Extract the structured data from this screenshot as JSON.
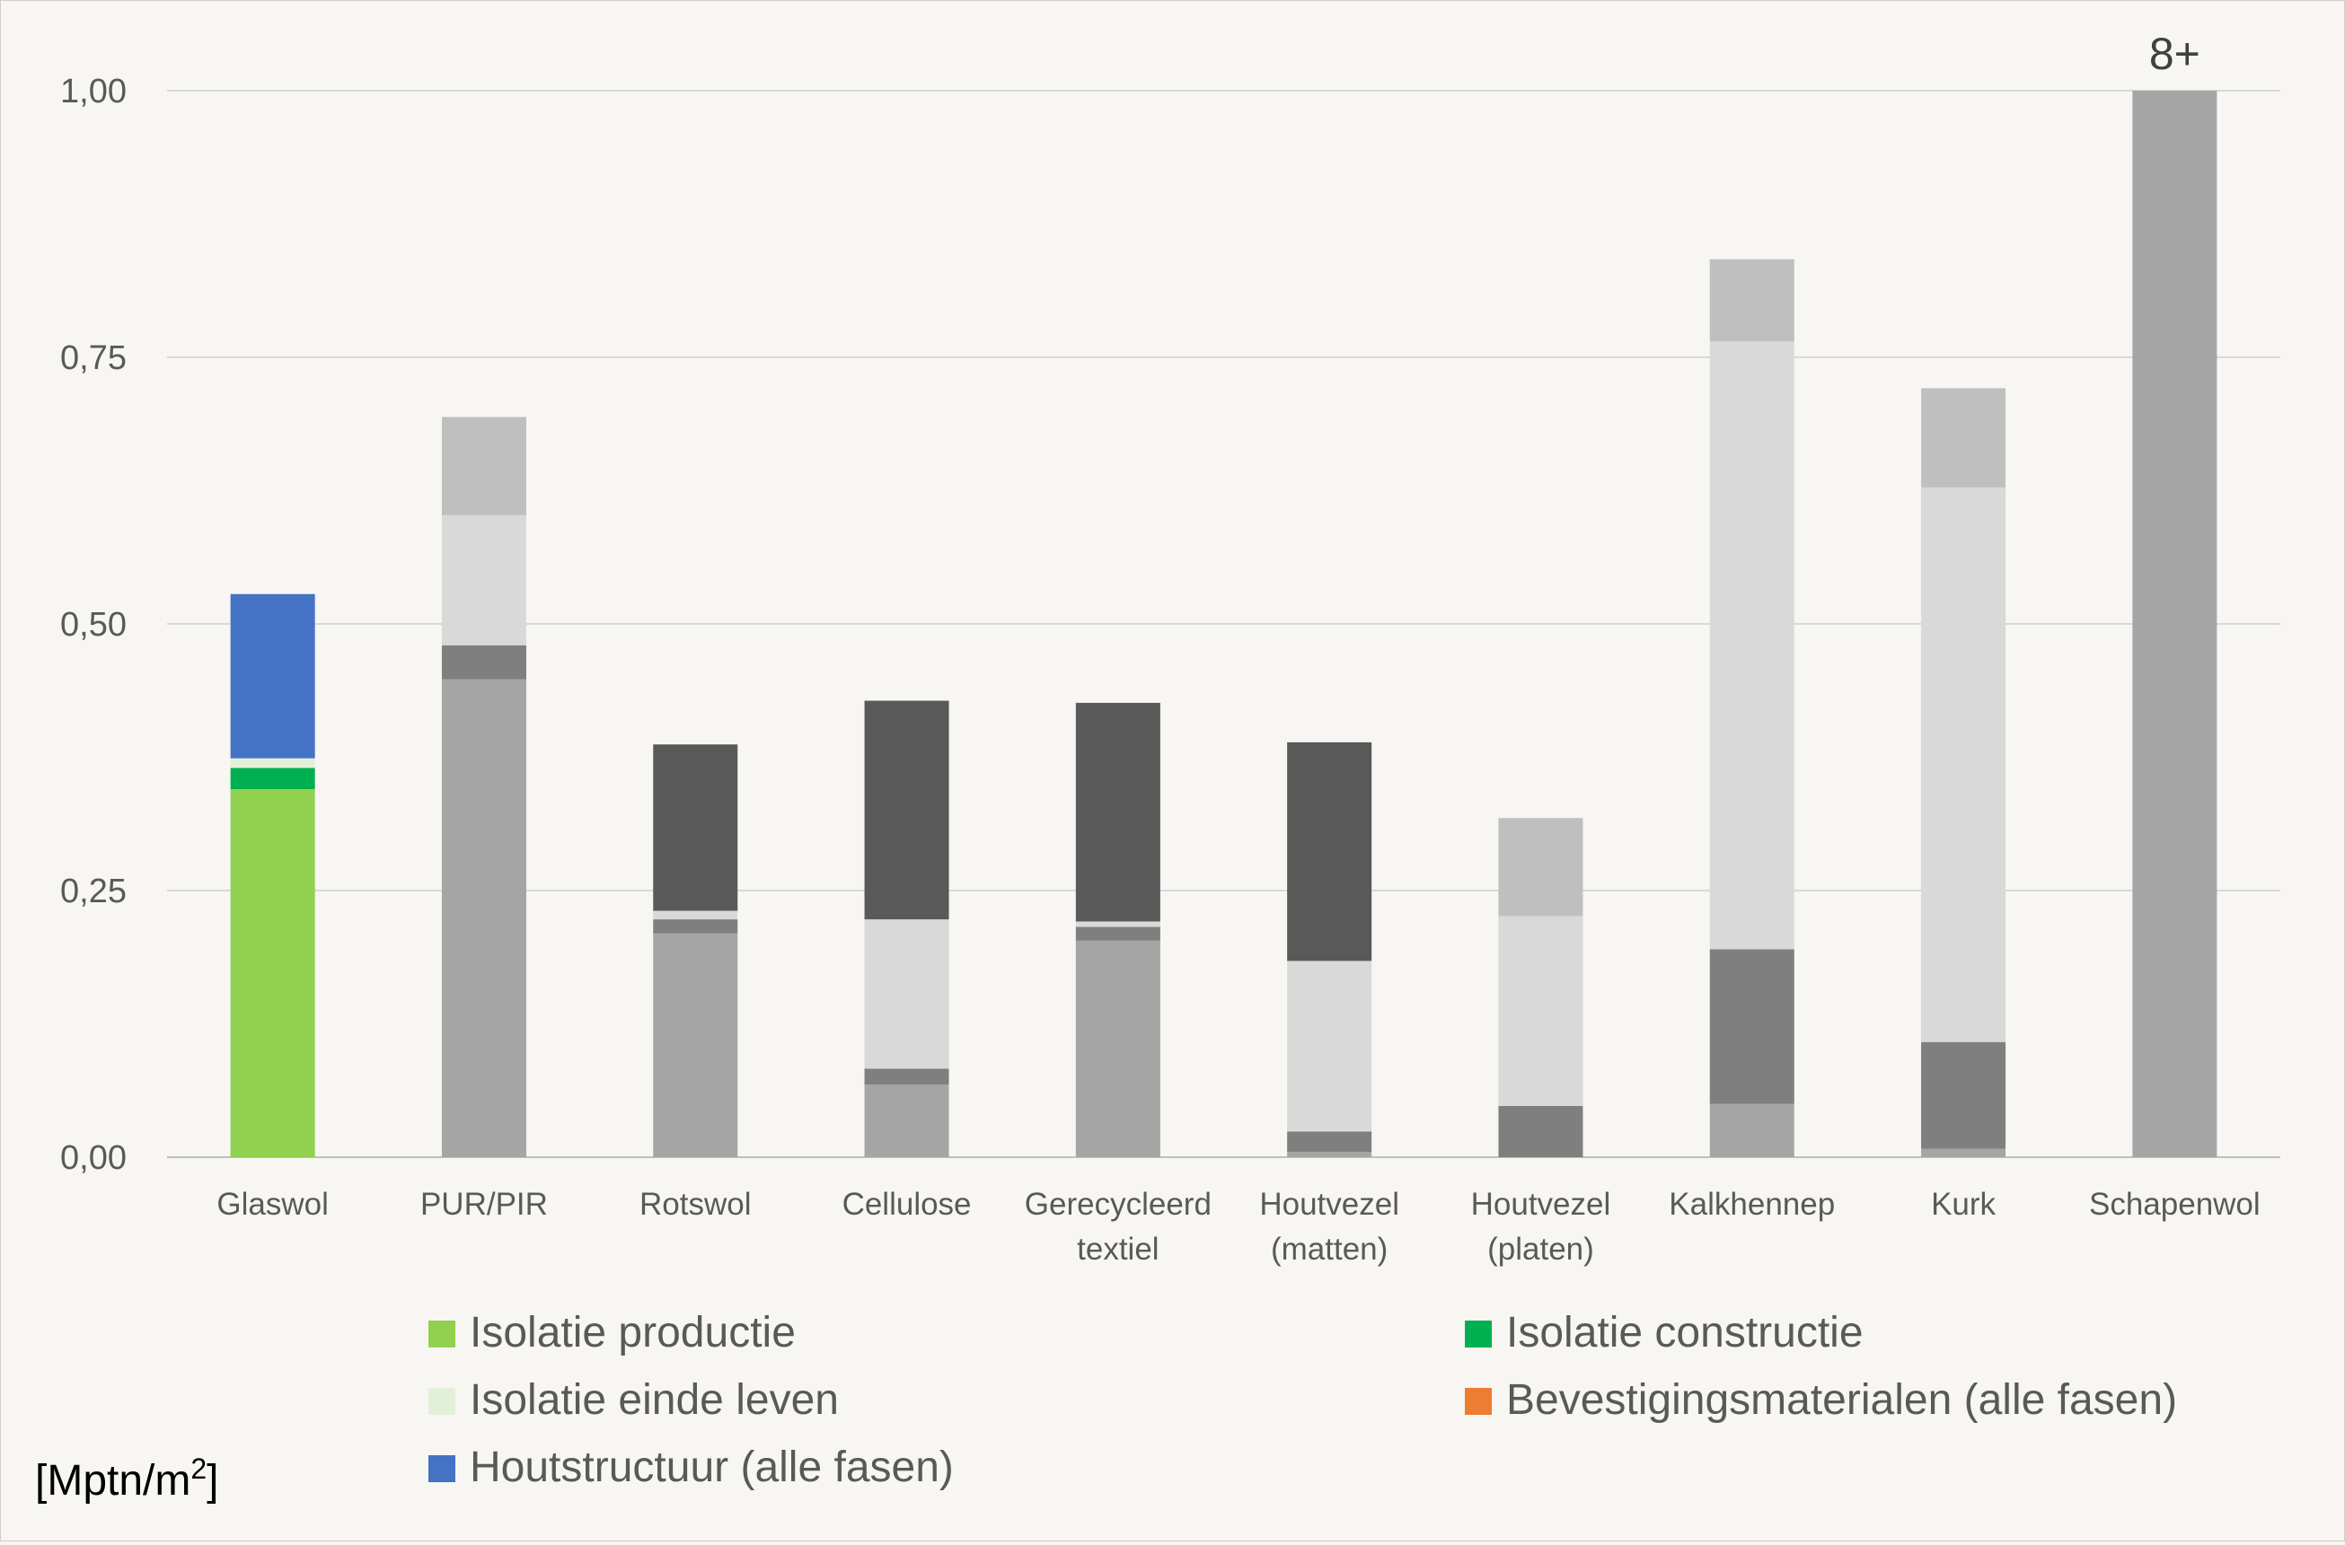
{
  "colors": {
    "background": "#f8f6f2",
    "grid": "#d9d9d9",
    "axis": "#bfbfbf",
    "text": "#595959"
  },
  "chart_data": {
    "type": "bar",
    "stacked": true,
    "unit_label": "[Mptn/m",
    "unit_superscript": "2",
    "unit_close": "]",
    "ylim": [
      0,
      1.0
    ],
    "yticks": [
      {
        "value": 0,
        "label": "0,00"
      },
      {
        "value": 0.25,
        "label": "0,25"
      },
      {
        "value": 0.5,
        "label": "0,50"
      },
      {
        "value": 0.75,
        "label": "0,75"
      },
      {
        "value": 1.0,
        "label": "1,00"
      }
    ],
    "grid": true,
    "legend_position": "bottom",
    "categories": [
      {
        "label": [
          "Glaswol"
        ]
      },
      {
        "label": [
          "PUR/PIR"
        ]
      },
      {
        "label": [
          "Rotswol"
        ]
      },
      {
        "label": [
          "Cellulose"
        ]
      },
      {
        "label": [
          "Gerecycleerd",
          "textiel"
        ]
      },
      {
        "label": [
          "Houtvezel",
          "(matten)"
        ]
      },
      {
        "label": [
          "Houtvezel",
          "(platen)"
        ]
      },
      {
        "label": [
          "Kalkhennep"
        ]
      },
      {
        "label": [
          "Kurk"
        ]
      },
      {
        "label": [
          "Schapenwol"
        ]
      }
    ],
    "series": [
      {
        "name": "Isolatie productie",
        "color": "#92d050",
        "values": [
          0.345,
          0.448,
          0.21,
          0.068,
          0.203,
          0.005,
          0.0,
          0.05,
          0.008,
          1.0
        ]
      },
      {
        "name": "Isolatie constructie",
        "color": "#00b050",
        "values": [
          0.02,
          0.032,
          0.013,
          0.015,
          0.013,
          0.019,
          0.048,
          0.145,
          0.1,
          0.0
        ]
      },
      {
        "name": "Isolatie einde leven",
        "color": "#e2f0d9",
        "values": [
          0.009,
          0.122,
          0.008,
          0.14,
          0.005,
          0.16,
          0.178,
          0.57,
          0.52,
          0.0
        ]
      },
      {
        "name": "Bevestigingsmaterialen (alle fasen)",
        "color": "#ed7d31",
        "values": [
          0.0,
          0.0,
          0.0,
          0.0,
          0.0,
          0.0,
          0.0,
          0.0,
          0.0,
          0.0
        ]
      },
      {
        "name": "Houtstructuur (alle fasen)",
        "color": "#4472c4",
        "values": [
          0.154,
          0.092,
          0.156,
          0.205,
          0.205,
          0.205,
          0.092,
          0.077,
          0.093,
          0.0
        ]
      }
    ],
    "bar_fills": [
      [
        "#92d050",
        "#00b050",
        "#e2f0d9",
        "#ed7d31",
        "#4472c4"
      ],
      [
        "#a5a5a5",
        "#7f7f7f",
        "#d9d9d9",
        "#ed7d31",
        "#bfbfbf"
      ],
      [
        "#a5a5a5",
        "#7f7f7f",
        "#d9d9d9",
        "#ed7d31",
        "#595959"
      ],
      [
        "#a5a5a5",
        "#7f7f7f",
        "#d9d9d9",
        "#ed7d31",
        "#595959"
      ],
      [
        "#a5a5a5",
        "#7f7f7f",
        "#d9d9d9",
        "#ed7d31",
        "#595959"
      ],
      [
        "#a5a5a5",
        "#7f7f7f",
        "#d9d9d9",
        "#ed7d31",
        "#595959"
      ],
      [
        "#a5a5a5",
        "#7f7f7f",
        "#d9d9d9",
        "#ed7d31",
        "#bfbfbf"
      ],
      [
        "#a5a5a5",
        "#7f7f7f",
        "#d9d9d9",
        "#ed7d31",
        "#bfbfbf"
      ],
      [
        "#a5a5a5",
        "#7f7f7f",
        "#d9d9d9",
        "#ed7d31",
        "#bfbfbf"
      ],
      [
        "#a5a5a5",
        "#7f7f7f",
        "#d9d9d9",
        "#ed7d31",
        "#bfbfbf"
      ]
    ],
    "annotations": [
      {
        "category": "Schapenwol",
        "text": "8+"
      }
    ]
  }
}
